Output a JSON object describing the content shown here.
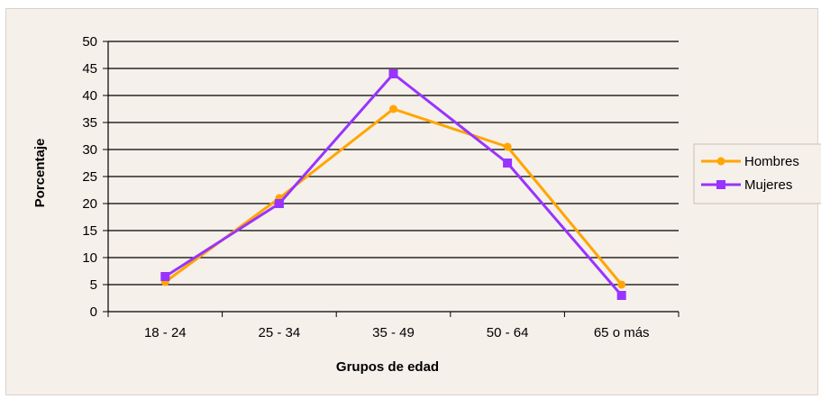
{
  "chart_data": {
    "type": "line",
    "title": "",
    "xlabel": "Grupos de edad",
    "ylabel": "Porcentaje",
    "categories": [
      "18 - 24",
      "25 - 34",
      "35 - 49",
      "50 - 64",
      "65 o más"
    ],
    "ylim": [
      0,
      50
    ],
    "yticks": [
      0,
      5,
      10,
      15,
      20,
      25,
      30,
      35,
      40,
      45,
      50
    ],
    "grid": true,
    "legend": "right",
    "series": [
      {
        "name": "Hombres",
        "values": [
          5.5,
          21,
          37.5,
          30.5,
          5
        ],
        "color": "#ffa500",
        "marker": "circle"
      },
      {
        "name": "Mujeres",
        "values": [
          6.5,
          20,
          44,
          27.5,
          3
        ],
        "color": "#9933ff",
        "marker": "square"
      }
    ]
  }
}
